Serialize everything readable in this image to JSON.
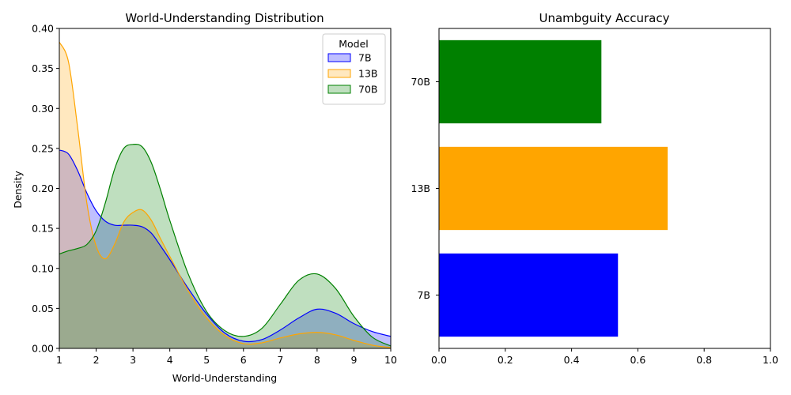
{
  "chart_data": [
    {
      "type": "area",
      "title": "World-Understanding Distribution",
      "xlabel": "World-Understanding",
      "ylabel": "Density",
      "xlim": [
        1,
        10
      ],
      "ylim": [
        0,
        0.4
      ],
      "xticks": [
        "1",
        "2",
        "3",
        "4",
        "5",
        "6",
        "7",
        "8",
        "9",
        "10"
      ],
      "yticks": [
        "0.00",
        "0.05",
        "0.10",
        "0.15",
        "0.20",
        "0.25",
        "0.30",
        "0.35",
        "0.40"
      ],
      "legend": {
        "title": "Model",
        "position": "top-right"
      },
      "x": [
        1,
        1.25,
        1.5,
        1.75,
        2,
        2.25,
        2.5,
        2.75,
        3,
        3.25,
        3.5,
        3.75,
        4,
        4.5,
        5,
        5.5,
        6,
        6.5,
        7,
        7.5,
        8,
        8.5,
        9,
        9.5,
        10
      ],
      "series": [
        {
          "name": "7B",
          "color": "#0000ff",
          "values": [
            0.248,
            0.243,
            0.222,
            0.194,
            0.172,
            0.159,
            0.154,
            0.154,
            0.154,
            0.152,
            0.144,
            0.128,
            0.111,
            0.075,
            0.043,
            0.019,
            0.009,
            0.011,
            0.023,
            0.038,
            0.049,
            0.044,
            0.031,
            0.021,
            0.015
          ]
        },
        {
          "name": "13B",
          "color": "#ffa500",
          "values": [
            0.383,
            0.358,
            0.275,
            0.181,
            0.128,
            0.112,
            0.13,
            0.158,
            0.17,
            0.173,
            0.16,
            0.137,
            0.115,
            0.072,
            0.038,
            0.016,
            0.006,
            0.007,
            0.013,
            0.018,
            0.02,
            0.017,
            0.01,
            0.004,
            0.001
          ]
        },
        {
          "name": "70B",
          "color": "#008000",
          "values": [
            0.118,
            0.122,
            0.125,
            0.13,
            0.147,
            0.182,
            0.224,
            0.25,
            0.255,
            0.252,
            0.232,
            0.198,
            0.16,
            0.093,
            0.046,
            0.022,
            0.015,
            0.025,
            0.055,
            0.085,
            0.093,
            0.075,
            0.04,
            0.014,
            0.003
          ]
        }
      ]
    },
    {
      "type": "bar",
      "orientation": "horizontal",
      "title": "Unambguity Accuracy",
      "categories": [
        "7B",
        "13B",
        "70B"
      ],
      "values": [
        0.54,
        0.69,
        0.49
      ],
      "colors": [
        "#0000ff",
        "#ffa500",
        "#008000"
      ],
      "xlim": [
        0,
        1
      ],
      "xticks": [
        "0.0",
        "0.2",
        "0.4",
        "0.6",
        "0.8",
        "1.0"
      ]
    }
  ]
}
